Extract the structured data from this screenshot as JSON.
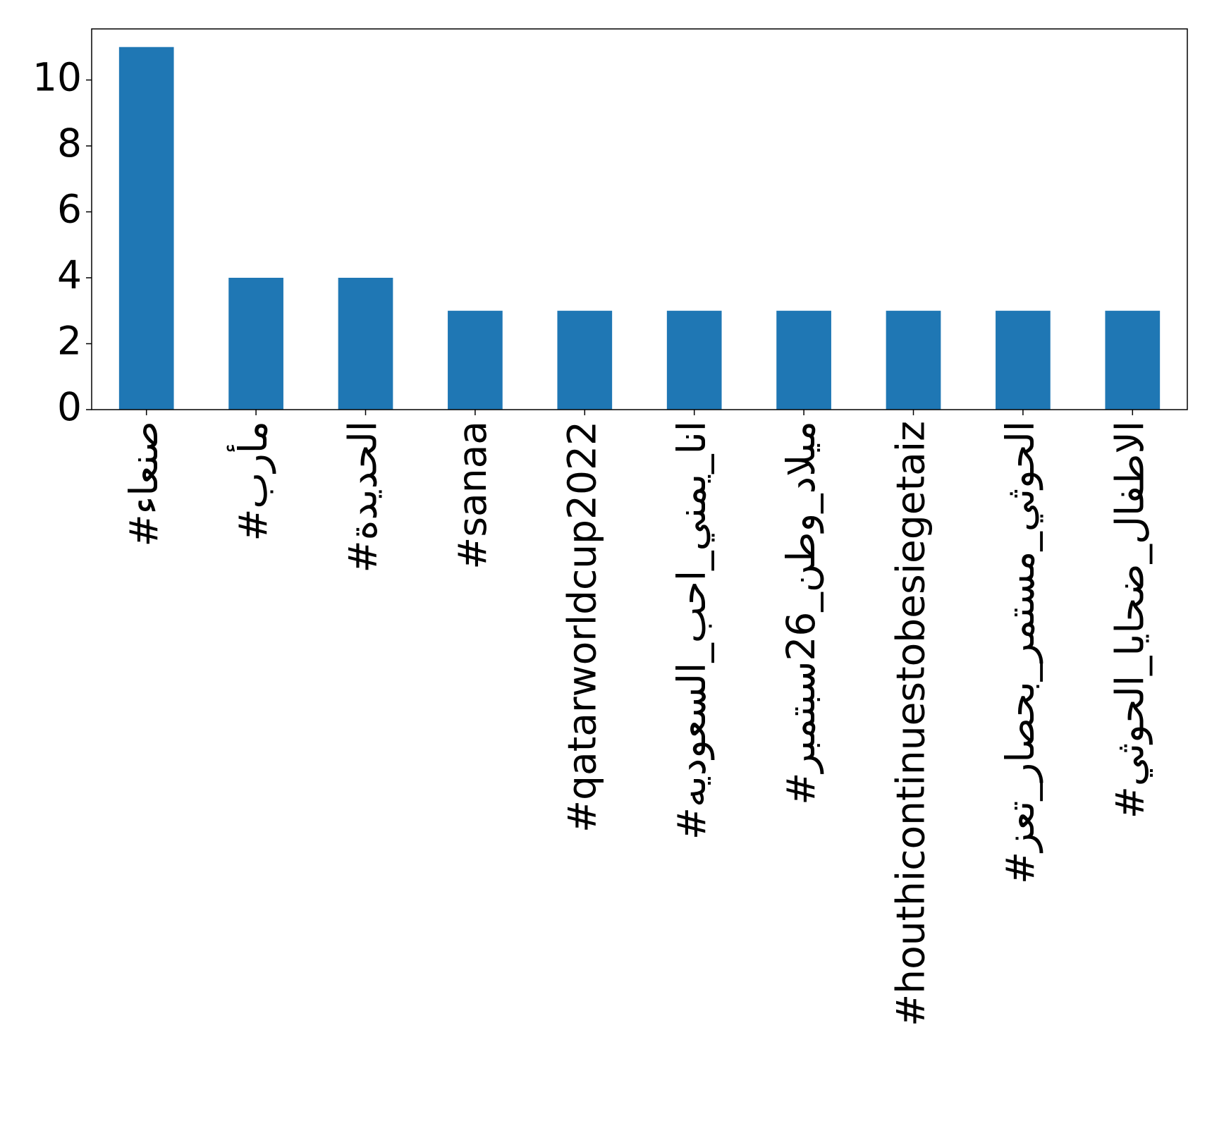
{
  "chart_data": {
    "type": "bar",
    "categories": [
      "#صنعاء",
      "#مأرب",
      "#الحديدة",
      "#sanaa",
      "#qatarworldcup2022",
      "#انا_يمني_احب_السعوديه",
      "#ميلاد_وطن_26سبتمبر",
      "#houthicontinuestobesiegetaiz",
      "#الحوثي_مستمر_بحصار_تعز",
      "#الاطفال_ضحايا_الحوثي"
    ],
    "values": [
      11,
      4,
      4,
      3,
      3,
      3,
      3,
      3,
      3,
      3
    ],
    "color": "#1f77b4",
    "ylim": [
      0,
      11.55
    ],
    "yticks": [
      0,
      2,
      4,
      6,
      8,
      10
    ]
  }
}
